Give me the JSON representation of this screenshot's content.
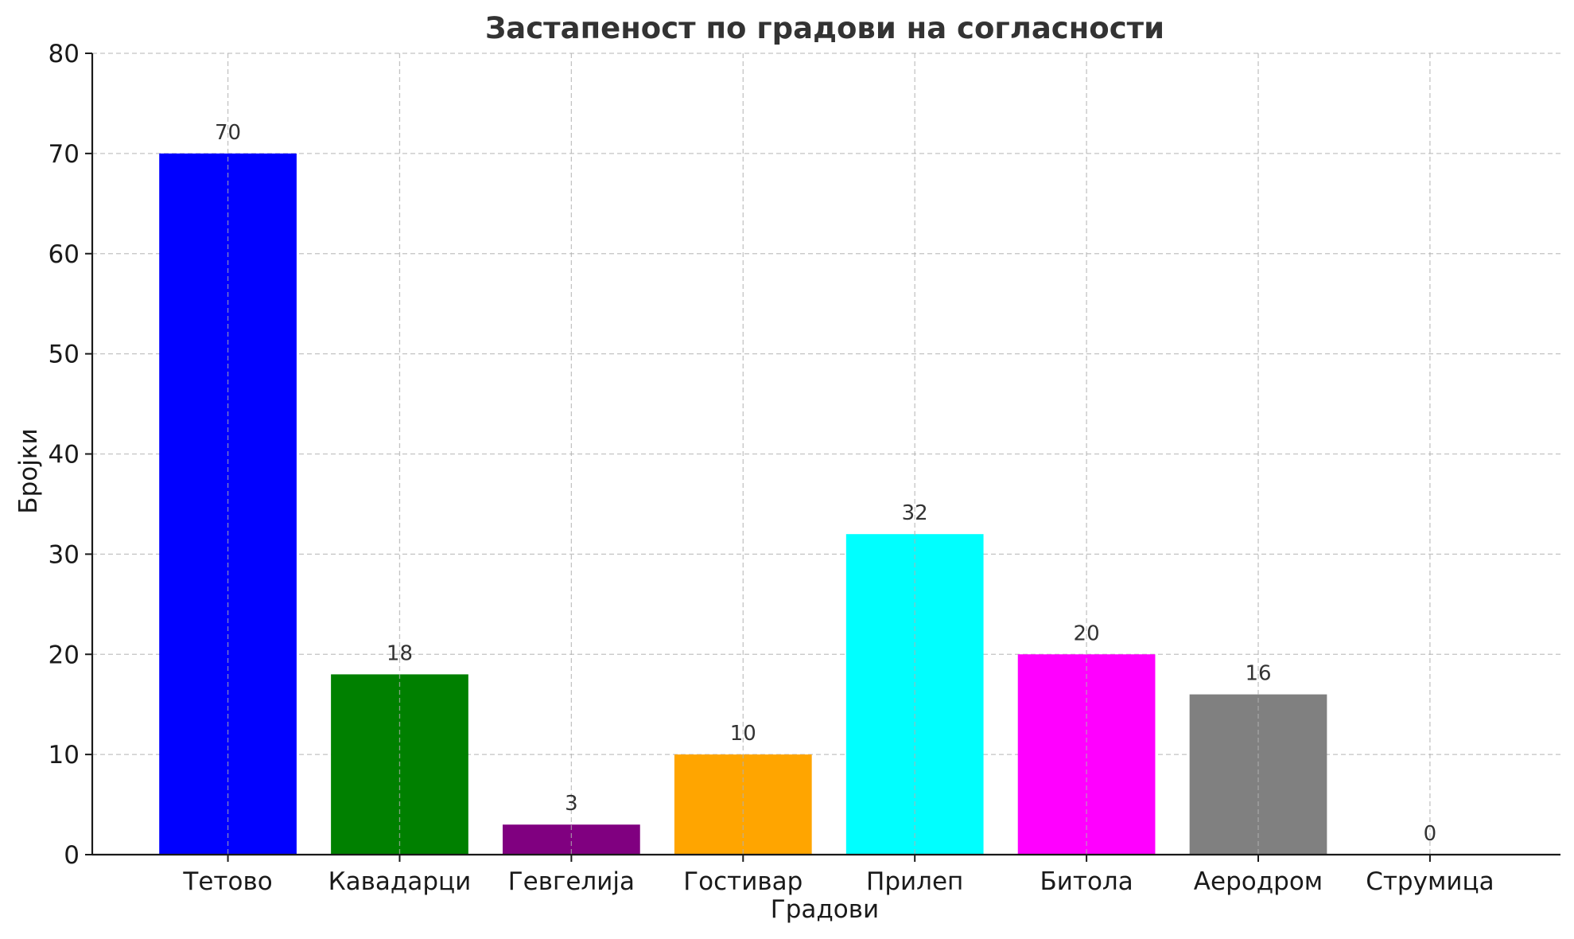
{
  "chart_data": {
    "type": "bar",
    "title": "Застапеност по градови на согласности",
    "xlabel": "Градови",
    "ylabel": "Бројки",
    "categories": [
      "Тетово",
      "Кавадарци",
      "Гевгелија",
      "Гостивар",
      "Прилеп",
      "Битола",
      "Аеродром",
      "Струмица"
    ],
    "values": [
      70,
      18,
      3,
      10,
      32,
      20,
      16,
      0
    ],
    "colors": [
      "#0000ff",
      "#008000",
      "#800080",
      "#ffa500",
      "#00ffff",
      "#ff00ff",
      "#808080",
      "#ffffff"
    ],
    "data_labels": [
      "70",
      "18",
      "3",
      "10",
      "32",
      "20",
      "16",
      "0"
    ],
    "ylim": [
      0,
      80
    ],
    "yticks": [
      0,
      10,
      20,
      30,
      40,
      50,
      60,
      70,
      80
    ],
    "grid": true,
    "legend": "none"
  }
}
